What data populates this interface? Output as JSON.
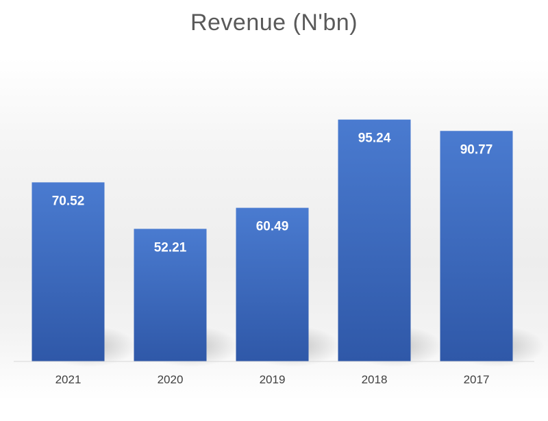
{
  "chart_data": {
    "type": "bar",
    "title": "Revenue (N'bn)",
    "xlabel": "",
    "ylabel": "",
    "categories": [
      "2021",
      "2020",
      "2019",
      "2018",
      "2017"
    ],
    "values": [
      70.52,
      52.21,
      60.49,
      95.24,
      90.77
    ],
    "data_labels": [
      "70.52",
      "52.21",
      "60.49",
      "95.24",
      "90.77"
    ],
    "ylim": [
      0,
      96.5
    ],
    "grid": false,
    "legend": "none",
    "colors": {
      "bar_top": "#4a7bd0",
      "bar_bottom": "#2f58a8",
      "data_label": "#ffffff",
      "tick_label": "#404040",
      "title": "#595959",
      "axis_line": "#d9d9d9"
    }
  }
}
